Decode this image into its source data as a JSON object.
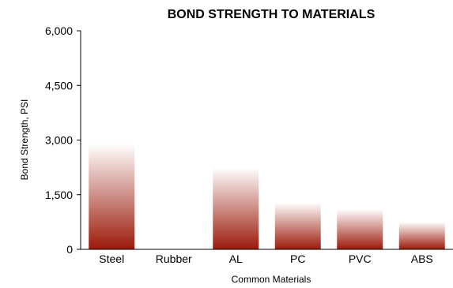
{
  "chart_data": {
    "type": "bar",
    "title": "BOND STRENGTH TO MATERIALS",
    "xlabel": "Common Materials",
    "ylabel": "Bond Strength, PSI",
    "categories": [
      "Steel",
      "Rubber",
      "AL",
      "PC",
      "PVC",
      "ABS"
    ],
    "values": [
      2900,
      0,
      2250,
      1280,
      1100,
      750
    ],
    "ylim": [
      0,
      6000
    ],
    "yticks": [
      "0",
      "1,500",
      "3,000",
      "4,500",
      "6,000"
    ],
    "ytick_values": [
      0,
      1500,
      3000,
      4500,
      6000
    ],
    "grid": false,
    "legend": "none",
    "colors": {
      "bar_dark": "#9b1a0a",
      "bar_light": "#ffffff"
    }
  }
}
